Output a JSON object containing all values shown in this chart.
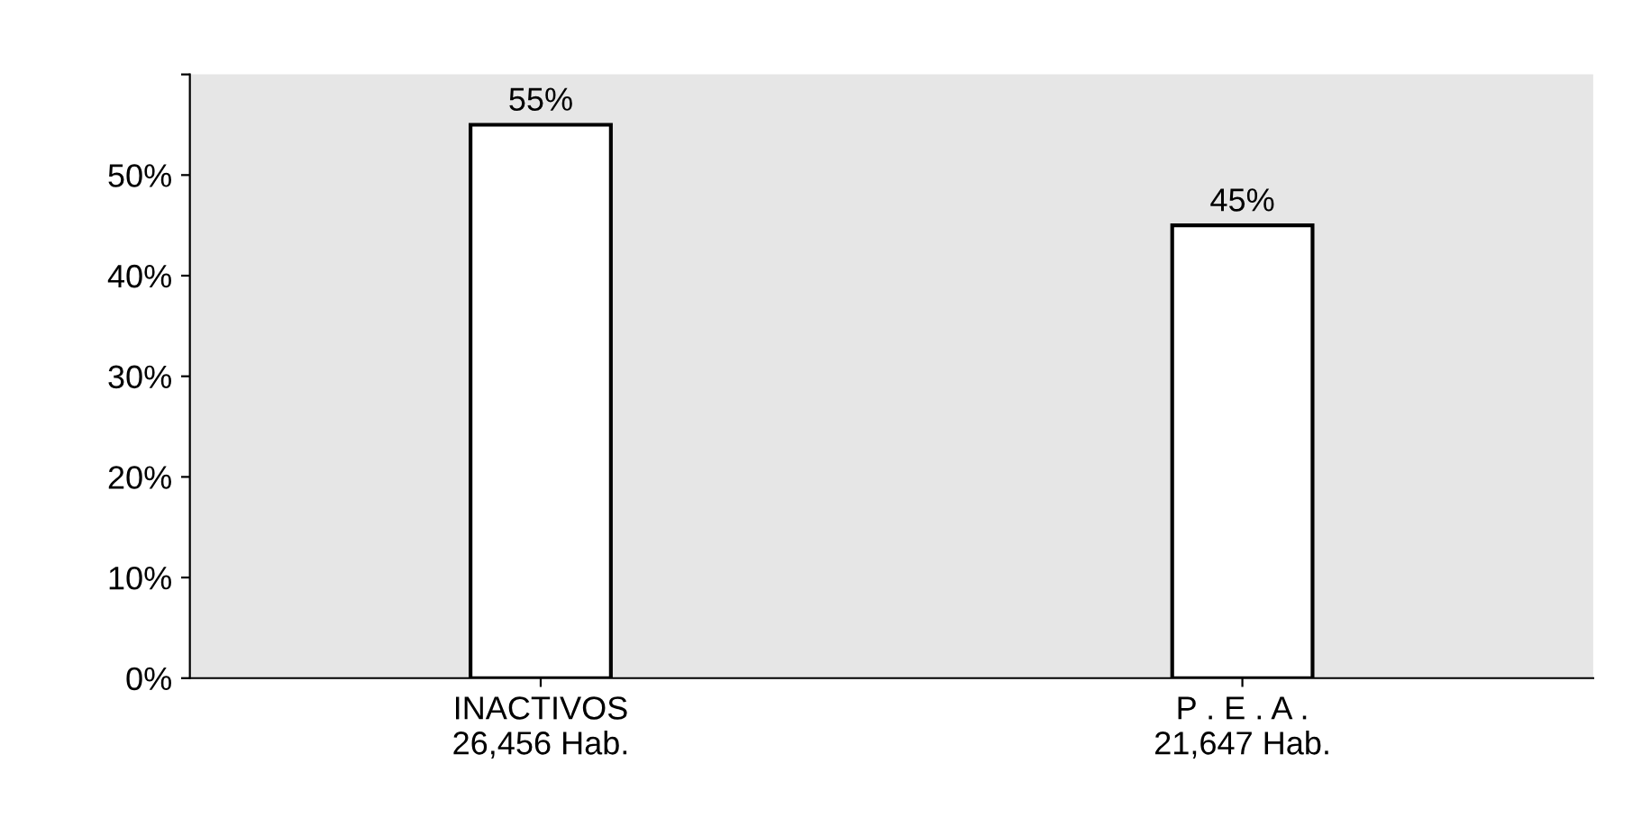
{
  "chart_data": {
    "type": "bar",
    "categories": [
      "INACTIVOS\n26,456 Hab.",
      "P . E . A .\n21,647 Hab."
    ],
    "values": [
      55,
      45
    ],
    "color": "#ffffff",
    "value_labels": [
      "55%",
      "45%"
    ],
    "ylim": [
      0,
      60
    ],
    "yticks": [
      {
        "value": 0,
        "label": "0%"
      },
      {
        "value": 10,
        "label": "10%"
      },
      {
        "value": 20,
        "label": "20%"
      },
      {
        "value": 30,
        "label": "30%"
      },
      {
        "value": 40,
        "label": "40%"
      },
      {
        "value": 50,
        "label": "50%"
      },
      {
        "value": 60,
        "label": null
      }
    ],
    "grid": false
  }
}
